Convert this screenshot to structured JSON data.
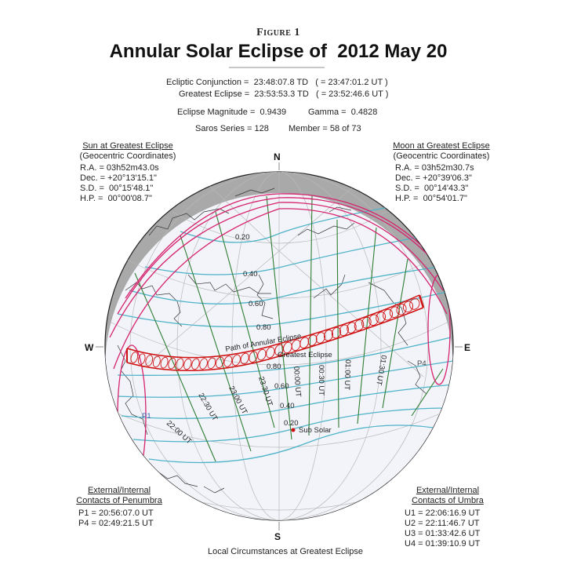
{
  "header": {
    "figure_label": "Figure 1",
    "title": "Annular Solar Eclipse of  2012 May 20"
  },
  "summary": {
    "ecliptic_conjunction": "Ecliptic Conjunction =  23:48:07.8 TD   ( = 23:47:01.2 UT )",
    "greatest_eclipse": "Greatest Eclipse =  23:53:53.3 TD   ( = 23:52:46.6 UT )",
    "magnitude": "Eclipse Magnitude =  0.9439",
    "gamma": "Gamma =  0.4828",
    "saros": "Saros Series = 128",
    "member": "Member = 58 of 73"
  },
  "sun_block": {
    "heading": "Sun at Greatest Eclipse",
    "subheading": "(Geocentric Coordinates)",
    "rows": [
      "R.A. = 03h52m43.0s",
      "Dec. = +20°13'15.1\"",
      "S.D. =  00°15'48.1\"",
      "H.P. =  00°00'08.7\""
    ]
  },
  "moon_block": {
    "heading": "Moon at Greatest Eclipse",
    "subheading": "(Geocentric Coordinates)",
    "rows": [
      "R.A. = 03h52m30.7s",
      "Dec. = +20°39'06.3\"",
      "S.D. =  00°14'43.3\"",
      "H.P. =  00°54'01.7\""
    ]
  },
  "penumbra_block": {
    "heading1": "External/Internal",
    "heading2": "Contacts of Penumbra",
    "rows": [
      "P1 = 20:56:07.0 UT",
      "P4 = 02:49:21.5 UT"
    ]
  },
  "umbra_block": {
    "heading1": "External/Internal",
    "heading2": "Contacts of Umbra",
    "rows": [
      "U1 = 22:06:16.9 UT",
      "U2 = 22:11:46.7 UT",
      "U3 = 01:33:42.6 UT",
      "U4 = 01:39:10.9 UT"
    ]
  },
  "local_block": {
    "heading": "Local Circumstances at Greatest Eclipse"
  },
  "compass": {
    "north": "N",
    "south": "S",
    "west": "W",
    "east": "E"
  },
  "globe": {
    "colors": {
      "day": "#f2f4fa",
      "night": "#a9a9a9",
      "magnitude_lines": "#4fb3c8",
      "time_lines": "#2e7d32",
      "penumbra_limits": "#d6246e",
      "path": "#d01010",
      "grid": "#b8b8b8",
      "coast": "#333333"
    },
    "labels": {
      "path": "Path of Annular Eclipse",
      "greatest": "Greatest Eclipse",
      "sub_solar": "Sub Solar",
      "p1": "P1",
      "p4": "P4"
    },
    "magnitude_labels": [
      "0.20",
      "0.40",
      "0.60",
      "0.80",
      "0.80",
      "0.60",
      "0.40",
      "0.20"
    ],
    "time_labels": [
      "22:00 UT",
      "22:30 UT",
      "23:00 UT",
      "23:30 UT",
      "00:00 UT",
      "00:30 UT",
      "01:00 UT",
      "01:30 UT"
    ]
  }
}
